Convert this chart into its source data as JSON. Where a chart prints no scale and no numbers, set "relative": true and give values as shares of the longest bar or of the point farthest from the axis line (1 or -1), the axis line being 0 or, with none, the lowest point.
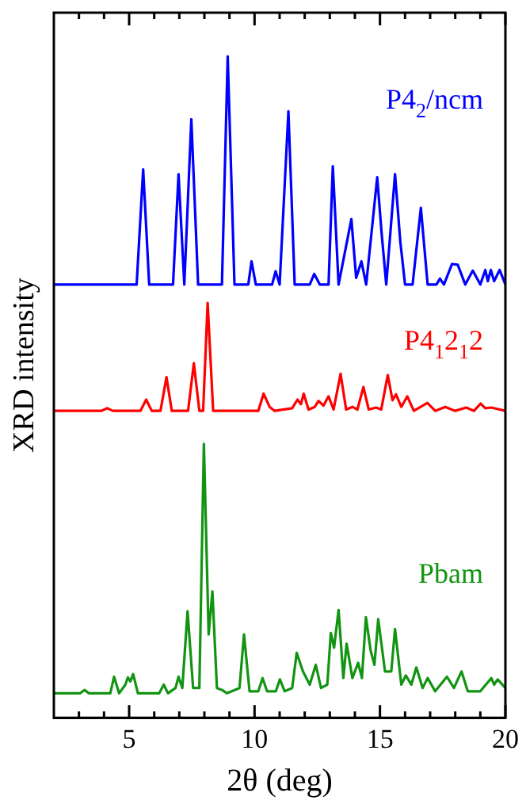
{
  "chart_data": {
    "type": "line",
    "xlabel": "2θ (deg)",
    "ylabel": "XRD intensity",
    "relative": true,
    "xlim": [
      2,
      20
    ],
    "xticks": [
      {
        "value": 3,
        "label": null
      },
      {
        "value": 4,
        "label": null
      },
      5,
      {
        "value": 6,
        "label": null
      },
      {
        "value": 7,
        "label": null
      },
      {
        "value": 8,
        "label": null
      },
      {
        "value": 9,
        "label": null
      },
      10,
      {
        "value": 11,
        "label": null
      },
      {
        "value": 12,
        "label": null
      },
      {
        "value": 13,
        "label": null
      },
      {
        "value": 14,
        "label": null
      },
      15,
      {
        "value": 16,
        "label": null
      },
      {
        "value": 17,
        "label": null
      },
      {
        "value": 18,
        "label": null
      },
      {
        "value": 19,
        "label": null
      },
      20
    ],
    "marker": "none",
    "line_style": "solid",
    "series": [
      {
        "name": "P4$_{2}$/ncm",
        "color": "#0000ff",
        "x": [
          2,
          5.3,
          5.56,
          5.8,
          6.75,
          6.97,
          7.2,
          7.48,
          7.75,
          8.7,
          8.93,
          9.2,
          9.75,
          9.88,
          10.05,
          10.7,
          10.84,
          11.0,
          11.35,
          11.6,
          12.2,
          12.38,
          12.6,
          12.95,
          13.12,
          13.35,
          13.86,
          14.05,
          14.26,
          14.45,
          14.89,
          15.06,
          15.25,
          15.6,
          15.81,
          16.0,
          16.3,
          16.63,
          16.9,
          17.25,
          17.39,
          17.55,
          17.87,
          18.1,
          18.4,
          18.7,
          19.0,
          19.2,
          19.3,
          19.42,
          19.55,
          19.77,
          20
        ],
        "values": [
          0.655,
          0.655,
          0.829,
          0.655,
          0.655,
          0.822,
          0.655,
          0.905,
          0.655,
          0.655,
          1.0,
          0.655,
          0.655,
          0.69,
          0.655,
          0.655,
          0.675,
          0.655,
          0.917,
          0.655,
          0.655,
          0.671,
          0.655,
          0.655,
          0.834,
          0.655,
          0.754,
          0.665,
          0.69,
          0.655,
          0.817,
          0.735,
          0.655,
          0.822,
          0.72,
          0.655,
          0.655,
          0.771,
          0.655,
          0.655,
          0.664,
          0.655,
          0.686,
          0.685,
          0.655,
          0.676,
          0.655,
          0.677,
          0.66,
          0.677,
          0.66,
          0.677,
          0.655
        ]
      },
      {
        "name": "P4$_{1}$2$_{1}$2",
        "color": "#ff0000",
        "x": [
          2,
          3.9,
          4.13,
          4.35,
          5.45,
          5.68,
          5.9,
          6.25,
          6.49,
          6.7,
          7.35,
          7.58,
          7.8,
          7.95,
          8.13,
          8.35,
          10.15,
          10.36,
          10.6,
          10.8,
          11.5,
          11.71,
          11.85,
          11.96,
          12.15,
          12.4,
          12.55,
          12.75,
          12.95,
          13.15,
          13.43,
          13.65,
          13.9,
          14.1,
          14.34,
          14.55,
          14.84,
          15.05,
          15.31,
          15.5,
          15.64,
          15.85,
          16.09,
          16.35,
          16.89,
          17.2,
          17.6,
          18.0,
          18.44,
          18.75,
          19.01,
          19.2,
          19.44,
          20
        ],
        "values": [
          0.464,
          0.464,
          0.468,
          0.464,
          0.464,
          0.481,
          0.464,
          0.464,
          0.515,
          0.464,
          0.464,
          0.536,
          0.464,
          0.464,
          0.627,
          0.464,
          0.464,
          0.49,
          0.47,
          0.464,
          0.468,
          0.481,
          0.474,
          0.49,
          0.466,
          0.47,
          0.479,
          0.472,
          0.486,
          0.466,
          0.52,
          0.466,
          0.47,
          0.466,
          0.5,
          0.466,
          0.469,
          0.466,
          0.518,
          0.48,
          0.489,
          0.47,
          0.486,
          0.464,
          0.476,
          0.464,
          0.47,
          0.464,
          0.469,
          0.464,
          0.475,
          0.468,
          0.469,
          0.464
        ]
      },
      {
        "name": "Pbam",
        "color": "#129412",
        "x": [
          2,
          3.05,
          3.22,
          3.4,
          4.25,
          4.4,
          4.6,
          4.85,
          4.95,
          5.05,
          5.16,
          5.35,
          6.2,
          6.38,
          6.55,
          6.85,
          6.97,
          7.12,
          7.33,
          7.55,
          7.8,
          7.98,
          8.17,
          8.32,
          8.5,
          8.7,
          8.9,
          9.4,
          9.58,
          9.8,
          10.15,
          10.32,
          10.5,
          10.85,
          11.01,
          11.2,
          11.5,
          11.68,
          11.93,
          12.2,
          12.44,
          12.65,
          12.9,
          13.04,
          13.17,
          13.35,
          13.54,
          13.67,
          13.9,
          14.13,
          14.28,
          14.44,
          14.63,
          14.78,
          14.93,
          15.2,
          15.45,
          15.6,
          15.85,
          16.03,
          16.25,
          16.45,
          16.7,
          16.9,
          17.2,
          17.67,
          17.95,
          18.25,
          18.5,
          19.0,
          19.44,
          19.55,
          19.69,
          20
        ],
        "values": [
          0.037,
          0.037,
          0.042,
          0.037,
          0.037,
          0.062,
          0.037,
          0.05,
          0.061,
          0.055,
          0.066,
          0.037,
          0.037,
          0.05,
          0.037,
          0.045,
          0.062,
          0.045,
          0.161,
          0.045,
          0.045,
          0.414,
          0.126,
          0.191,
          0.045,
          0.042,
          0.037,
          0.045,
          0.126,
          0.04,
          0.04,
          0.06,
          0.04,
          0.04,
          0.058,
          0.04,
          0.045,
          0.098,
          0.07,
          0.05,
          0.08,
          0.045,
          0.05,
          0.128,
          0.106,
          0.163,
          0.06,
          0.112,
          0.06,
          0.083,
          0.06,
          0.152,
          0.101,
          0.08,
          0.149,
          0.07,
          0.07,
          0.134,
          0.05,
          0.064,
          0.05,
          0.076,
          0.045,
          0.06,
          0.04,
          0.062,
          0.045,
          0.07,
          0.04,
          0.04,
          0.06,
          0.05,
          0.058,
          0.045
        ]
      }
    ]
  }
}
